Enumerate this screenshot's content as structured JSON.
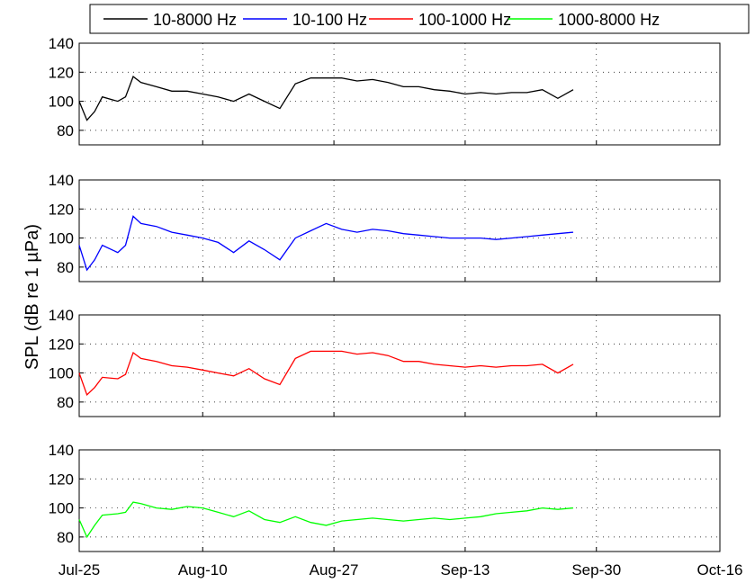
{
  "chart_data": {
    "type": "line",
    "ylabel": "SPL (dB re 1 µPa)",
    "legend": {
      "placement": "top",
      "entries": [
        {
          "name": "10-8000 Hz",
          "color": "#000000"
        },
        {
          "name": "10-100 Hz",
          "color": "#0000ff"
        },
        {
          "name": "100-1000 Hz",
          "color": "#ff0000"
        },
        {
          "name": "1000-8000 Hz",
          "color": "#00ff00"
        }
      ]
    },
    "x_ticks": [
      "Jul-25",
      "Aug-10",
      "Aug-27",
      "Sep-13",
      "Sep-30",
      "Oct-16"
    ],
    "xlim": [
      "2012-07-25",
      "2012-10-16"
    ],
    "ylim": [
      70,
      140
    ],
    "y_ticks": [
      80,
      100,
      120,
      140
    ],
    "grid": true,
    "panels": [
      {
        "series": "10-8000 Hz",
        "color": "#000000",
        "points": [
          [
            "2012-07-25",
            100
          ],
          [
            "2012-07-26",
            87
          ],
          [
            "2012-07-27",
            93
          ],
          [
            "2012-07-28",
            103
          ],
          [
            "2012-07-30",
            100
          ],
          [
            "2012-07-31",
            103
          ],
          [
            "2012-08-01",
            117
          ],
          [
            "2012-08-02",
            113
          ],
          [
            "2012-08-04",
            110
          ],
          [
            "2012-08-06",
            107
          ],
          [
            "2012-08-08",
            107
          ],
          [
            "2012-08-10",
            105
          ],
          [
            "2012-08-12",
            103
          ],
          [
            "2012-08-14",
            100
          ],
          [
            "2012-08-16",
            105
          ],
          [
            "2012-08-18",
            100
          ],
          [
            "2012-08-20",
            95
          ],
          [
            "2012-08-22",
            112
          ],
          [
            "2012-08-24",
            116
          ],
          [
            "2012-08-26",
            116
          ],
          [
            "2012-08-28",
            116
          ],
          [
            "2012-08-30",
            114
          ],
          [
            "2012-09-01",
            115
          ],
          [
            "2012-09-03",
            113
          ],
          [
            "2012-09-05",
            110
          ],
          [
            "2012-09-07",
            110
          ],
          [
            "2012-09-09",
            108
          ],
          [
            "2012-09-11",
            107
          ],
          [
            "2012-09-13",
            105
          ],
          [
            "2012-09-15",
            106
          ],
          [
            "2012-09-17",
            105
          ],
          [
            "2012-09-19",
            106
          ],
          [
            "2012-09-21",
            106
          ],
          [
            "2012-09-23",
            108
          ],
          [
            "2012-09-25",
            102
          ],
          [
            "2012-09-27",
            108
          ]
        ]
      },
      {
        "series": "10-100 Hz",
        "color": "#0000ff",
        "points": [
          [
            "2012-07-25",
            95
          ],
          [
            "2012-07-26",
            78
          ],
          [
            "2012-07-27",
            85
          ],
          [
            "2012-07-28",
            95
          ],
          [
            "2012-07-30",
            90
          ],
          [
            "2012-07-31",
            95
          ],
          [
            "2012-08-01",
            115
          ],
          [
            "2012-08-02",
            110
          ],
          [
            "2012-08-04",
            108
          ],
          [
            "2012-08-06",
            104
          ],
          [
            "2012-08-08",
            102
          ],
          [
            "2012-08-10",
            100
          ],
          [
            "2012-08-12",
            97
          ],
          [
            "2012-08-14",
            90
          ],
          [
            "2012-08-16",
            98
          ],
          [
            "2012-08-18",
            92
          ],
          [
            "2012-08-20",
            85
          ],
          [
            "2012-08-22",
            100
          ],
          [
            "2012-08-24",
            105
          ],
          [
            "2012-08-26",
            110
          ],
          [
            "2012-08-28",
            106
          ],
          [
            "2012-08-30",
            104
          ],
          [
            "2012-09-01",
            106
          ],
          [
            "2012-09-03",
            105
          ],
          [
            "2012-09-05",
            103
          ],
          [
            "2012-09-07",
            102
          ],
          [
            "2012-09-09",
            101
          ],
          [
            "2012-09-11",
            100
          ],
          [
            "2012-09-13",
            100
          ],
          [
            "2012-09-15",
            100
          ],
          [
            "2012-09-17",
            99
          ],
          [
            "2012-09-19",
            100
          ],
          [
            "2012-09-21",
            101
          ],
          [
            "2012-09-23",
            102
          ],
          [
            "2012-09-25",
            103
          ],
          [
            "2012-09-27",
            104
          ]
        ]
      },
      {
        "series": "100-1000 Hz",
        "color": "#ff0000",
        "points": [
          [
            "2012-07-25",
            100
          ],
          [
            "2012-07-26",
            85
          ],
          [
            "2012-07-27",
            90
          ],
          [
            "2012-07-28",
            97
          ],
          [
            "2012-07-30",
            96
          ],
          [
            "2012-07-31",
            99
          ],
          [
            "2012-08-01",
            114
          ],
          [
            "2012-08-02",
            110
          ],
          [
            "2012-08-04",
            108
          ],
          [
            "2012-08-06",
            105
          ],
          [
            "2012-08-08",
            104
          ],
          [
            "2012-08-10",
            102
          ],
          [
            "2012-08-12",
            100
          ],
          [
            "2012-08-14",
            98
          ],
          [
            "2012-08-16",
            103
          ],
          [
            "2012-08-18",
            96
          ],
          [
            "2012-08-20",
            92
          ],
          [
            "2012-08-22",
            110
          ],
          [
            "2012-08-24",
            115
          ],
          [
            "2012-08-26",
            115
          ],
          [
            "2012-08-28",
            115
          ],
          [
            "2012-08-30",
            113
          ],
          [
            "2012-09-01",
            114
          ],
          [
            "2012-09-03",
            112
          ],
          [
            "2012-09-05",
            108
          ],
          [
            "2012-09-07",
            108
          ],
          [
            "2012-09-09",
            106
          ],
          [
            "2012-09-11",
            105
          ],
          [
            "2012-09-13",
            104
          ],
          [
            "2012-09-15",
            105
          ],
          [
            "2012-09-17",
            104
          ],
          [
            "2012-09-19",
            105
          ],
          [
            "2012-09-21",
            105
          ],
          [
            "2012-09-23",
            106
          ],
          [
            "2012-09-25",
            100
          ],
          [
            "2012-09-27",
            106
          ]
        ]
      },
      {
        "series": "1000-8000 Hz",
        "color": "#00ff00",
        "points": [
          [
            "2012-07-25",
            92
          ],
          [
            "2012-07-26",
            80
          ],
          [
            "2012-07-27",
            88
          ],
          [
            "2012-07-28",
            95
          ],
          [
            "2012-07-30",
            96
          ],
          [
            "2012-07-31",
            97
          ],
          [
            "2012-08-01",
            104
          ],
          [
            "2012-08-02",
            103
          ],
          [
            "2012-08-04",
            100
          ],
          [
            "2012-08-06",
            99
          ],
          [
            "2012-08-08",
            101
          ],
          [
            "2012-08-10",
            100
          ],
          [
            "2012-08-12",
            97
          ],
          [
            "2012-08-14",
            94
          ],
          [
            "2012-08-16",
            98
          ],
          [
            "2012-08-18",
            92
          ],
          [
            "2012-08-20",
            90
          ],
          [
            "2012-08-22",
            94
          ],
          [
            "2012-08-24",
            90
          ],
          [
            "2012-08-26",
            88
          ],
          [
            "2012-08-28",
            91
          ],
          [
            "2012-08-30",
            92
          ],
          [
            "2012-09-01",
            93
          ],
          [
            "2012-09-03",
            92
          ],
          [
            "2012-09-05",
            91
          ],
          [
            "2012-09-07",
            92
          ],
          [
            "2012-09-09",
            93
          ],
          [
            "2012-09-11",
            92
          ],
          [
            "2012-09-13",
            93
          ],
          [
            "2012-09-15",
            94
          ],
          [
            "2012-09-17",
            96
          ],
          [
            "2012-09-19",
            97
          ],
          [
            "2012-09-21",
            98
          ],
          [
            "2012-09-23",
            100
          ],
          [
            "2012-09-25",
            99
          ],
          [
            "2012-09-27",
            100
          ]
        ]
      }
    ]
  }
}
